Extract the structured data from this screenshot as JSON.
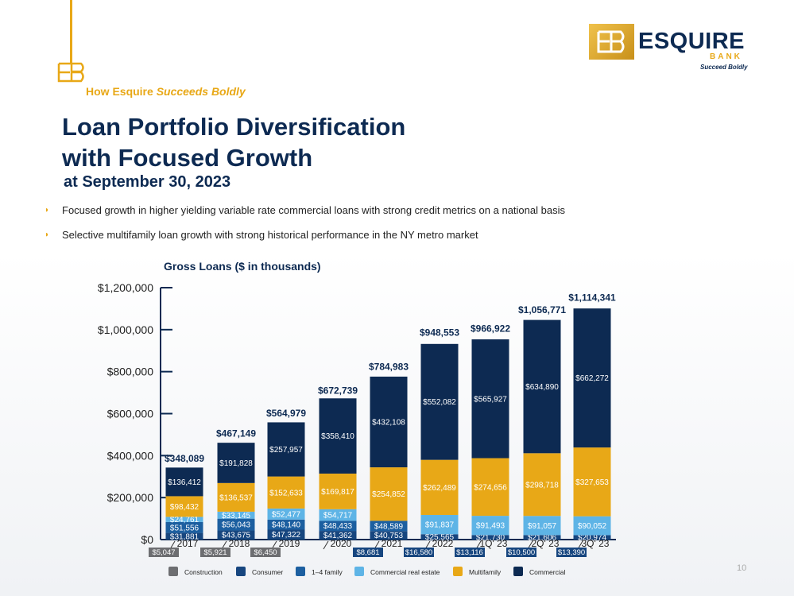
{
  "header": {
    "kicker_prefix": "How Esquire",
    "kicker_emphasis": "Succeeds Boldly",
    "title_line1": "Loan Portfolio Diversification",
    "title_line2": "with Focused Growth",
    "subtitle": "at September 30, 2023"
  },
  "logo": {
    "word": "ESQUIRE",
    "bank": "BANK",
    "tagline": "Succeed Boldly"
  },
  "bullets": [
    "Focused growth in higher yielding variable rate commercial loans with strong credit metrics on a national basis",
    "Selective multifamily loan growth with strong historical performance in the NY metro market"
  ],
  "page_number": "10",
  "colors": {
    "construction": "#6d6e71",
    "consumer": "#17467f",
    "one_to_four_family": "#1c5fa0",
    "commercial_real_estate": "#5eb4e6",
    "multifamily": "#e8a817",
    "commercial": "#0d2a52",
    "accent": "#e8a817"
  },
  "chart_data": {
    "type": "bar",
    "stacked": true,
    "title": "Gross Loans ($ in thousands)",
    "categories": [
      "2017",
      "2018",
      "2019",
      "2020",
      "2021",
      "2022",
      "1Q' 23",
      "2Q' 23",
      "3Q' 23"
    ],
    "ylim": [
      0,
      1200000
    ],
    "yticks": [
      "$0",
      "$200,000",
      "$400,000",
      "$600,000",
      "$800,000",
      "$1,000,000",
      "$1,200,000"
    ],
    "ytick_values": [
      0,
      200000,
      400000,
      600000,
      800000,
      1000000,
      1200000
    ],
    "totals": [
      348089,
      467149,
      564979,
      672739,
      784983,
      948553,
      966922,
      1056771,
      1114341
    ],
    "total_labels": [
      "$348,089",
      "$467,149",
      "$564,979",
      "$672,739",
      "$784,983",
      "$948,553",
      "$966,922",
      "$1,056,771",
      "$1,114,341"
    ],
    "series": [
      {
        "name": "Construction",
        "values": [
          5047,
          5921,
          6450,
          null,
          8681,
          16580,
          13116,
          10500,
          13390
        ],
        "labels": [
          "$5,047",
          "$5,921",
          "$6,450",
          "",
          "$8,681",
          "$16,580",
          "$13,116",
          "$10,500",
          "$13,390"
        ]
      },
      {
        "name": "Consumer",
        "values": [
          31881,
          43675,
          47322,
          41362,
          40753,
          25565,
          21730,
          21606,
          20974
        ],
        "labels": [
          "$31,881",
          "$43,675",
          "$47,322",
          "$41,362",
          "$40,753",
          "$25,565",
          "$21,730",
          "$21,606",
          "$20,974"
        ]
      },
      {
        "name": "1–4 family",
        "values": [
          51556,
          56043,
          48140,
          48433,
          48589,
          null,
          null,
          null,
          null
        ],
        "labels": [
          "$51,556",
          "$56,043",
          "$48,140",
          "$48,433",
          "$48,589",
          "",
          "",
          "",
          ""
        ]
      },
      {
        "name": "Commercial real estate",
        "values": [
          24761,
          33145,
          52477,
          54717,
          null,
          91837,
          91493,
          91057,
          90052
        ],
        "labels": [
          "$24,761",
          "$33,145",
          "$52,477",
          "$54,717",
          "",
          "$91,837",
          "$91,493",
          "$91,057",
          "$90,052"
        ]
      },
      {
        "name": "Multifamily",
        "values": [
          98432,
          136537,
          152633,
          169817,
          254852,
          262489,
          274656,
          298718,
          327653
        ],
        "labels": [
          "$98,432",
          "$136,537",
          "$152,633",
          "$169,817",
          "$254,852",
          "$262,489",
          "$274,656",
          "$298,718",
          "$327,653"
        ]
      },
      {
        "name": "Commercial",
        "values": [
          136412,
          191828,
          257957,
          358410,
          432108,
          552082,
          565927,
          634890,
          662272
        ],
        "labels": [
          "$136,412",
          "$191,828",
          "$257,957",
          "$358,410",
          "$432,108",
          "$552,082",
          "$565,927",
          "$634,890",
          "$662,272"
        ]
      }
    ],
    "legend_position": "bottom",
    "grid": false
  }
}
